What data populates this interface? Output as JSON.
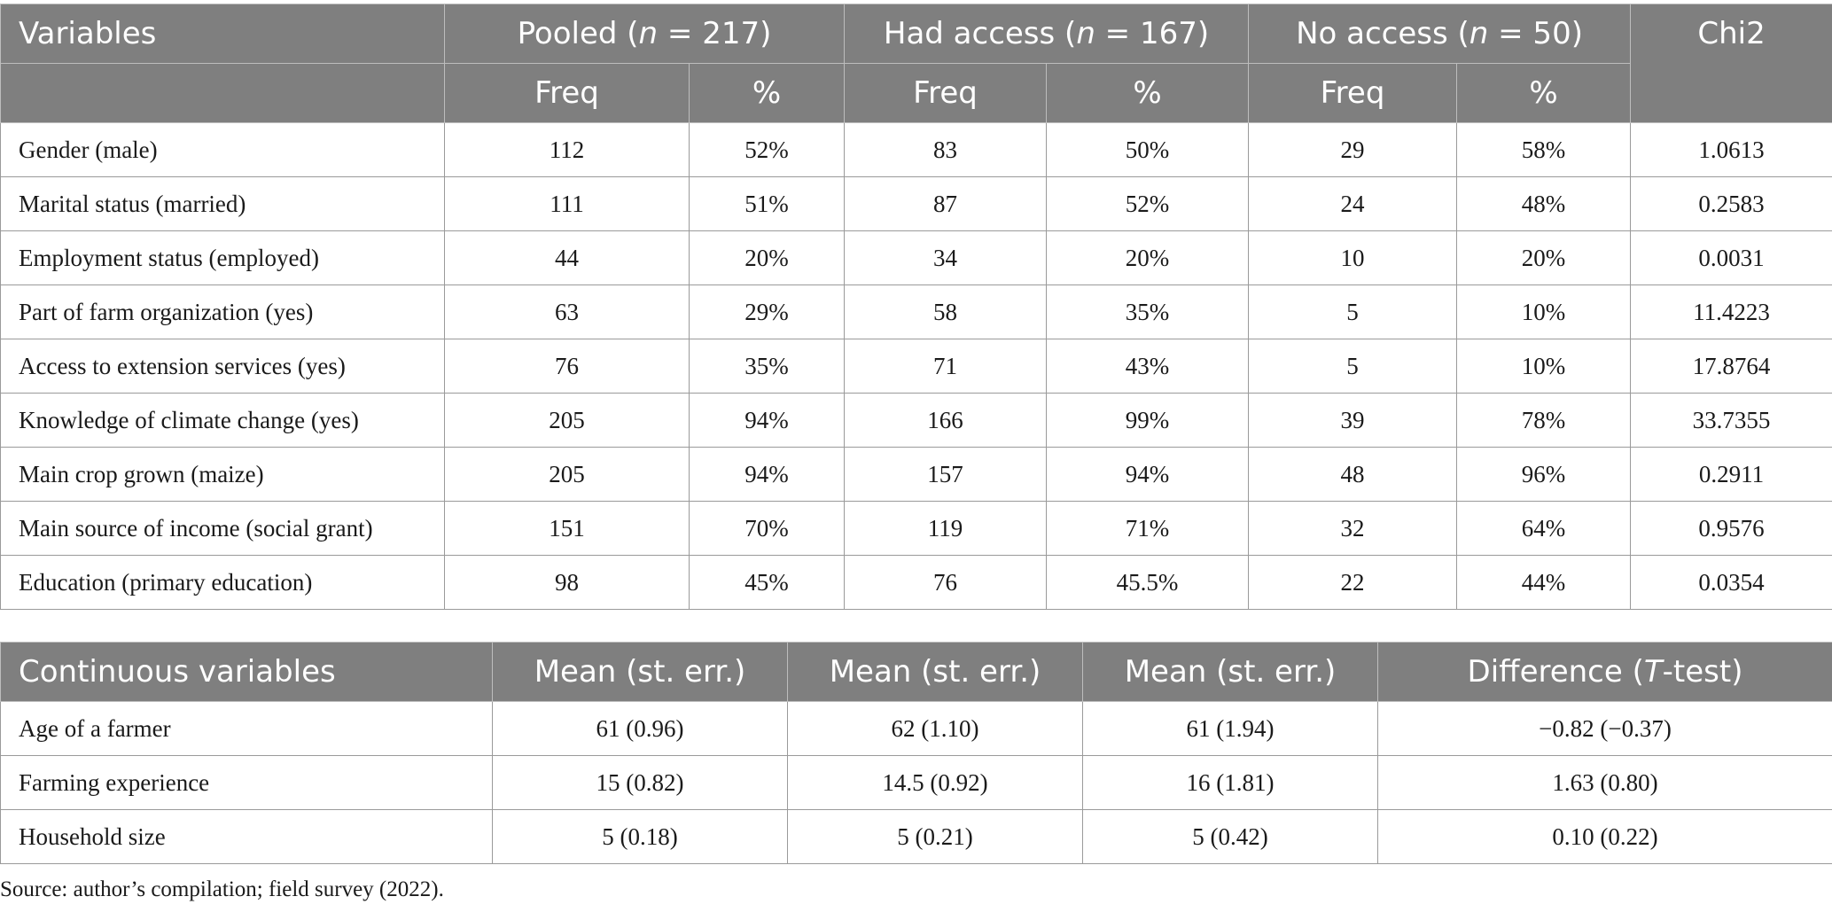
{
  "table1": {
    "header": {
      "variables": "Variables",
      "pooled_prefix": "Pooled (",
      "pooled_n": "n",
      "pooled_suffix": " = 217)",
      "had_prefix": "Had access (",
      "had_n": "n",
      "had_suffix": " = 167)",
      "no_prefix": "No access (",
      "no_n": "n",
      "no_suffix": " = 50)",
      "chi2": "Chi2",
      "freq": "Freq",
      "pct": "%"
    },
    "rows": [
      [
        "Gender (male)",
        "112",
        "52%",
        "83",
        "50%",
        "29",
        "58%",
        "1.0613"
      ],
      [
        "Marital status (married)",
        "111",
        "51%",
        "87",
        "52%",
        "24",
        "48%",
        "0.2583"
      ],
      [
        "Employment status (employed)",
        "44",
        "20%",
        "34",
        "20%",
        "10",
        "20%",
        "0.0031"
      ],
      [
        "Part of farm organization (yes)",
        "63",
        "29%",
        "58",
        "35%",
        "5",
        "10%",
        "11.4223"
      ],
      [
        "Access to extension services (yes)",
        "76",
        "35%",
        "71",
        "43%",
        "5",
        "10%",
        "17.8764"
      ],
      [
        "Knowledge of climate change (yes)",
        "205",
        "94%",
        "166",
        "99%",
        "39",
        "78%",
        "33.7355"
      ],
      [
        "Main crop grown (maize)",
        "205",
        "94%",
        "157",
        "94%",
        "48",
        "96%",
        "0.2911"
      ],
      [
        "Main source of income (social grant)",
        "151",
        "70%",
        "119",
        "71%",
        "32",
        "64%",
        "0.9576"
      ],
      [
        "Education (primary education)",
        "98",
        "45%",
        "76",
        "45.5%",
        "22",
        "44%",
        "0.0354"
      ]
    ]
  },
  "table2": {
    "header": {
      "continuous": "Continuous variables",
      "mean1": "Mean (st. err.)",
      "mean2": "Mean (st. err.)",
      "mean3": "Mean (st. err.)",
      "diff_prefix": "Difference (",
      "diff_t": "T",
      "diff_suffix": "-test)"
    },
    "rows": [
      [
        "Age of a farmer",
        "61 (0.96)",
        "62 (1.10)",
        "61 (1.94)",
        "−0.82 (−0.37)"
      ],
      [
        "Farming experience",
        "15 (0.82)",
        "14.5 (0.92)",
        "16 (1.81)",
        "1.63 (0.80)"
      ],
      [
        "Household size",
        "5 (0.18)",
        "5 (0.21)",
        "5 (0.42)",
        "0.10 (0.22)"
      ]
    ]
  },
  "source": "Source: author’s compilation; field survey (2022)."
}
